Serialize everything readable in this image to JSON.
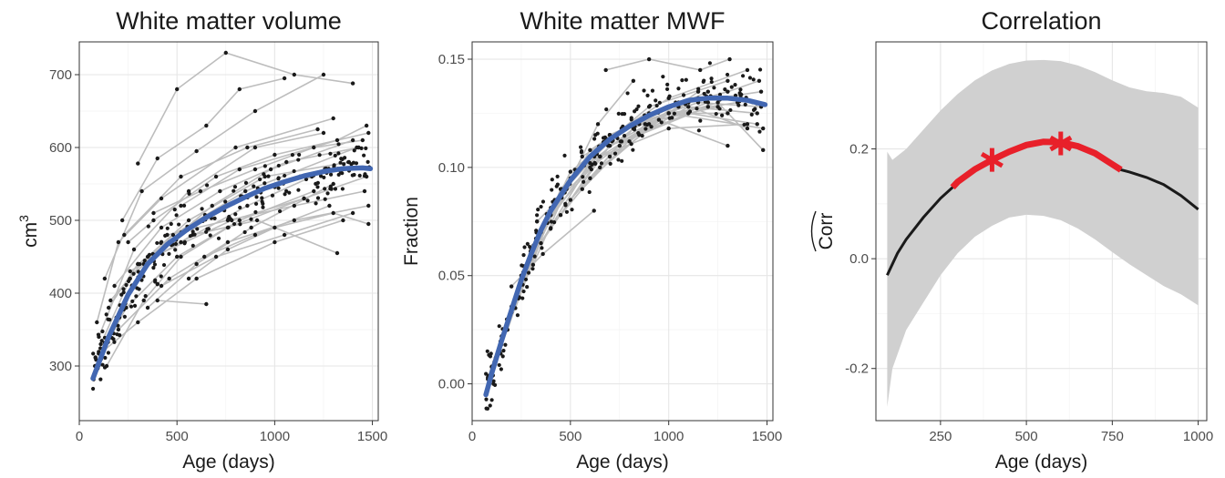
{
  "chart_data": [
    {
      "type": "line",
      "title": "White matter volume",
      "xlabel": "Age (days)",
      "ylabel": "cm",
      "ylabel_sup": "3",
      "xlim": [
        0,
        1530
      ],
      "ylim": [
        225,
        745
      ],
      "xticks": [
        0,
        500,
        1000,
        1500
      ],
      "xtick_labels": [
        "0",
        "500",
        "1000",
        "1500"
      ],
      "yticks": [
        300,
        400,
        500,
        600,
        700
      ],
      "ytick_labels": [
        "300",
        "400",
        "500",
        "600",
        "700"
      ],
      "grid": true,
      "colors": {
        "trajectories": "#bdbdbd",
        "points": "#1a1a1a",
        "fit": "#4267b2"
      },
      "fit_series": {
        "x": [
          70,
          150,
          250,
          350,
          450,
          550,
          650,
          750,
          850,
          950,
          1050,
          1150,
          1250,
          1350,
          1450,
          1490
        ],
        "y": [
          283,
          340,
          398,
          440,
          467,
          487,
          504,
          519,
          532,
          544,
          553,
          561,
          567,
          571,
          572,
          571
        ]
      },
      "subjects": [
        {
          "x": [
            300,
            500,
            750,
            1100,
            1400
          ],
          "y": [
            578,
            680,
            730,
            700,
            688
          ]
        },
        {
          "x": [
            220,
            400,
            650,
            820,
            1050
          ],
          "y": [
            500,
            585,
            630,
            680,
            695
          ]
        },
        {
          "x": [
            130,
            320,
            600,
            900,
            1250
          ],
          "y": [
            420,
            540,
            595,
            650,
            700
          ]
        },
        {
          "x": [
            90,
            200,
            420,
            800,
            1300
          ],
          "y": [
            360,
            470,
            530,
            600,
            640
          ]
        },
        {
          "x": [
            250,
            380,
            700,
            1000,
            1480
          ],
          "y": [
            470,
            500,
            560,
            590,
            620
          ]
        },
        {
          "x": [
            110,
            260,
            480,
            850,
            1420
          ],
          "y": [
            330,
            420,
            480,
            540,
            600
          ]
        },
        {
          "x": [
            380,
            620,
            900,
            1200,
            1450
          ],
          "y": [
            510,
            540,
            570,
            600,
            610
          ]
        },
        {
          "x": [
            160,
            350,
            560,
            950,
            1380
          ],
          "y": [
            390,
            450,
            500,
            560,
            580
          ]
        },
        {
          "x": [
            80,
            240,
            500,
            820,
            1200
          ],
          "y": [
            300,
            380,
            450,
            500,
            540
          ]
        },
        {
          "x": [
            300,
            540,
            780,
            1150,
            1470
          ],
          "y": [
            440,
            470,
            500,
            530,
            560
          ]
        },
        {
          "x": [
            120,
            300,
            600,
            1000,
            1350
          ],
          "y": [
            320,
            360,
            420,
            470,
            500
          ]
        },
        {
          "x": [
            420,
            700,
            1050,
            1400
          ],
          "y": [
            410,
            450,
            480,
            510
          ]
        },
        {
          "x": [
            200,
            460,
            760,
            1100,
            1480
          ],
          "y": [
            350,
            420,
            470,
            500,
            520
          ]
        },
        {
          "x": [
            350,
            600,
            880,
            1300
          ],
          "y": [
            380,
            440,
            490,
            550
          ]
        },
        {
          "x": [
            640,
            900,
            1280
          ],
          "y": [
            450,
            480,
            520
          ]
        },
        {
          "x": [
            520,
            820,
            1320,
            1470
          ],
          "y": [
            520,
            570,
            610,
            630
          ]
        },
        {
          "x": [
            100,
            280,
            560,
            900,
            1250
          ],
          "y": [
            340,
            460,
            540,
            600,
            620
          ]
        },
        {
          "x": [
            180,
            420,
            720,
            1060,
            1430
          ],
          "y": [
            410,
            490,
            540,
            580,
            600
          ]
        },
        {
          "x": [
            260,
            520,
            860,
            1190
          ],
          "y": [
            430,
            470,
            520,
            560
          ]
        },
        {
          "x": [
            450,
            760,
            1100,
            1460
          ],
          "y": [
            480,
            500,
            520,
            540
          ]
        },
        {
          "x": [
            330,
            580,
            910,
            1320
          ],
          "y": [
            440,
            480,
            500,
            455
          ]
        },
        {
          "x": [
            140,
            330,
            520,
            760,
            1150
          ],
          "y": [
            300,
            390,
            450,
            490,
            530
          ]
        },
        {
          "x": [
            400,
            650
          ],
          "y": [
            390,
            385
          ]
        },
        {
          "x": [
            560,
            760,
            1000,
            1300,
            1480
          ],
          "y": [
            420,
            460,
            490,
            510,
            495
          ]
        },
        {
          "x": [
            150,
            300,
            460,
            680,
            980,
            1400
          ],
          "y": [
            380,
            440,
            470,
            520,
            570,
            610
          ]
        },
        {
          "x": [
            230,
            520,
            860,
            1220
          ],
          "y": [
            480,
            560,
            600,
            625
          ]
        }
      ]
    },
    {
      "type": "line",
      "title": "White matter MWF",
      "xlabel": "Age (days)",
      "ylabel": "Fraction",
      "xlim": [
        0,
        1530
      ],
      "ylim": [
        -0.017,
        0.158
      ],
      "xticks": [
        0,
        500,
        1000,
        1500
      ],
      "xtick_labels": [
        "0",
        "500",
        "1000",
        "1500"
      ],
      "yticks": [
        0,
        0.05,
        0.1,
        0.15
      ],
      "ytick_labels": [
        "0.00",
        "0.05",
        "0.10",
        "0.15"
      ],
      "grid": true,
      "colors": {
        "trajectories": "#bdbdbd",
        "points": "#1a1a1a",
        "fit": "#4267b2"
      },
      "fit_series": {
        "x": [
          70,
          100,
          150,
          200,
          250,
          300,
          350,
          400,
          500,
          600,
          700,
          800,
          900,
          1000,
          1100,
          1200,
          1300,
          1400,
          1490
        ],
        "y": [
          -0.005,
          0.005,
          0.02,
          0.034,
          0.048,
          0.06,
          0.071,
          0.08,
          0.094,
          0.105,
          0.113,
          0.119,
          0.124,
          0.128,
          0.131,
          0.132,
          0.132,
          0.131,
          0.129
        ]
      },
      "subjects": [
        {
          "x": [
            80,
            150,
            300,
            600,
            1000,
            1400
          ],
          "y": [
            0.003,
            0.022,
            0.062,
            0.108,
            0.132,
            0.145
          ]
        },
        {
          "x": [
            100,
            200,
            400,
            700,
            1100,
            1450
          ],
          "y": [
            0.008,
            0.033,
            0.078,
            0.11,
            0.125,
            0.12
          ]
        },
        {
          "x": [
            120,
            250,
            500,
            900,
            1300
          ],
          "y": [
            0.012,
            0.05,
            0.098,
            0.128,
            0.14
          ]
        },
        {
          "x": [
            140,
            280,
            600,
            1000,
            1480
          ],
          "y": [
            0.015,
            0.055,
            0.102,
            0.125,
            0.118
          ]
        },
        {
          "x": [
            180,
            350,
            700,
            1200
          ],
          "y": [
            0.025,
            0.07,
            0.115,
            0.135
          ]
        },
        {
          "x": [
            220,
            420,
            760,
            1150,
            1470
          ],
          "y": [
            0.035,
            0.085,
            0.118,
            0.13,
            0.128
          ]
        },
        {
          "x": [
            260,
            500,
            850,
            1250
          ],
          "y": [
            0.05,
            0.095,
            0.12,
            0.128
          ]
        },
        {
          "x": [
            300,
            560,
            900,
            1300,
            1460
          ],
          "y": [
            0.06,
            0.105,
            0.125,
            0.135,
            0.14
          ]
        },
        {
          "x": [
            350,
            650,
            1000,
            1400
          ],
          "y": [
            0.065,
            0.105,
            0.118,
            0.12
          ]
        },
        {
          "x": [
            400,
            700,
            1050
          ],
          "y": [
            0.072,
            0.11,
            0.128
          ]
        },
        {
          "x": [
            450,
            760,
            1100,
            1470
          ],
          "y": [
            0.078,
            0.112,
            0.13,
            0.135
          ]
        },
        {
          "x": [
            500,
            820,
            1150
          ],
          "y": [
            0.085,
            0.118,
            0.132
          ]
        },
        {
          "x": [
            560,
            880,
            1250,
            1480
          ],
          "y": [
            0.09,
            0.12,
            0.13,
            0.108
          ]
        },
        {
          "x": [
            600,
            950,
            1300
          ],
          "y": [
            0.095,
            0.122,
            0.11
          ]
        },
        {
          "x": [
            650,
            1000,
            1350
          ],
          "y": [
            0.1,
            0.125,
            0.13
          ]
        },
        {
          "x": [
            700,
            1050,
            1400
          ],
          "y": [
            0.105,
            0.13,
            0.118
          ]
        },
        {
          "x": [
            750,
            1100,
            1450
          ],
          "y": [
            0.11,
            0.128,
            0.125
          ]
        },
        {
          "x": [
            800,
            1150
          ],
          "y": [
            0.112,
            0.135
          ]
        },
        {
          "x": [
            850,
            1200
          ],
          "y": [
            0.115,
            0.128
          ]
        },
        {
          "x": [
            680,
            900,
            1160,
            1310
          ],
          "y": [
            0.145,
            0.15,
            0.145,
            0.15
          ]
        },
        {
          "x": [
            310,
            480,
            640,
            820
          ],
          "y": [
            0.055,
            0.09,
            0.12,
            0.14
          ]
        },
        {
          "x": [
            200,
            360,
            620
          ],
          "y": [
            0.045,
            0.06,
            0.08
          ]
        },
        {
          "x": [
            240,
            450,
            700,
            1000,
            1300
          ],
          "y": [
            0.04,
            0.09,
            0.115,
            0.125,
            0.125
          ]
        },
        {
          "x": [
            330,
            600,
            900,
            1200
          ],
          "y": [
            0.075,
            0.1,
            0.12,
            0.13
          ]
        }
      ]
    },
    {
      "type": "line",
      "title": "Correlation",
      "xlabel": "Age (days)",
      "ylabel": "Corr",
      "xlim": [
        62,
        1025
      ],
      "ylim": [
        -0.295,
        0.395
      ],
      "xticks": [
        250,
        500,
        750,
        1000
      ],
      "xtick_labels": [
        "250",
        "500",
        "750",
        "1000"
      ],
      "yticks": [
        -0.2,
        0,
        0.2
      ],
      "ytick_labels": [
        "-0.2",
        "0.0",
        "0.2"
      ],
      "grid": true,
      "colors": {
        "band": "#d0d0d0",
        "estimate": "#1a1a1a",
        "significant": "#e8202a"
      },
      "band": {
        "x": [
          95,
          110,
          150,
          200,
          250,
          300,
          350,
          400,
          450,
          500,
          550,
          600,
          650,
          700,
          750,
          800,
          850,
          900,
          950,
          1000
        ],
        "upper": [
          0.195,
          0.18,
          0.2,
          0.235,
          0.27,
          0.3,
          0.325,
          0.343,
          0.355,
          0.361,
          0.362,
          0.36,
          0.352,
          0.34,
          0.325,
          0.312,
          0.305,
          0.302,
          0.295,
          0.275
        ],
        "lower": [
          -0.27,
          -0.2,
          -0.13,
          -0.08,
          -0.03,
          0.01,
          0.04,
          0.06,
          0.075,
          0.08,
          0.078,
          0.07,
          0.055,
          0.035,
          0.012,
          -0.01,
          -0.03,
          -0.05,
          -0.065,
          -0.085
        ]
      },
      "estimate": {
        "x": [
          95,
          125,
          150,
          200,
          250,
          285,
          300,
          350,
          400,
          450,
          500,
          550,
          600,
          650,
          700,
          750,
          775,
          800,
          850,
          900,
          950,
          1000
        ],
        "y": [
          -0.03,
          0.01,
          0.035,
          0.075,
          0.11,
          0.13,
          0.14,
          0.163,
          0.18,
          0.195,
          0.207,
          0.213,
          0.212,
          0.205,
          0.192,
          0.172,
          0.162,
          0.158,
          0.148,
          0.135,
          0.115,
          0.09
        ]
      },
      "significant_range": [
        285,
        775
      ],
      "markers": [
        {
          "x": 400,
          "y": 0.18
        },
        {
          "x": 600,
          "y": 0.21
        }
      ]
    }
  ]
}
